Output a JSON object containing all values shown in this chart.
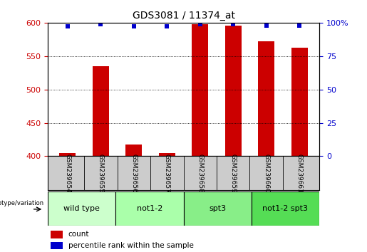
{
  "title": "GDS3081 / 11374_at",
  "samples": [
    "GSM239654",
    "GSM239655",
    "GSM239656",
    "GSM239657",
    "GSM239658",
    "GSM239659",
    "GSM239660",
    "GSM239661"
  ],
  "counts": [
    405,
    535,
    418,
    405,
    598,
    596,
    572,
    563
  ],
  "percentiles": [
    97,
    99,
    97,
    97,
    99,
    99,
    98,
    98
  ],
  "ylim_left": [
    400,
    600
  ],
  "ylim_right": [
    0,
    100
  ],
  "yticks_left": [
    400,
    450,
    500,
    550,
    600
  ],
  "yticks_right": [
    0,
    25,
    50,
    75,
    100
  ],
  "groups": [
    {
      "label": "wild type",
      "start": 0,
      "end": 2,
      "color": "#ccffcc"
    },
    {
      "label": "not1-2",
      "start": 2,
      "end": 4,
      "color": "#aaffaa"
    },
    {
      "label": "spt3",
      "start": 4,
      "end": 6,
      "color": "#88ee88"
    },
    {
      "label": "not1-2 spt3",
      "start": 6,
      "end": 8,
      "color": "#55dd55"
    }
  ],
  "bar_color": "#cc0000",
  "dot_color": "#0000cc",
  "bar_width": 0.5,
  "tick_label_color_left": "#cc0000",
  "tick_label_color_right": "#0000cc",
  "grid_color": "black",
  "label_area_bg": "#cccccc",
  "yticks_right_labels": [
    "0",
    "25",
    "50",
    "75",
    "100%"
  ]
}
